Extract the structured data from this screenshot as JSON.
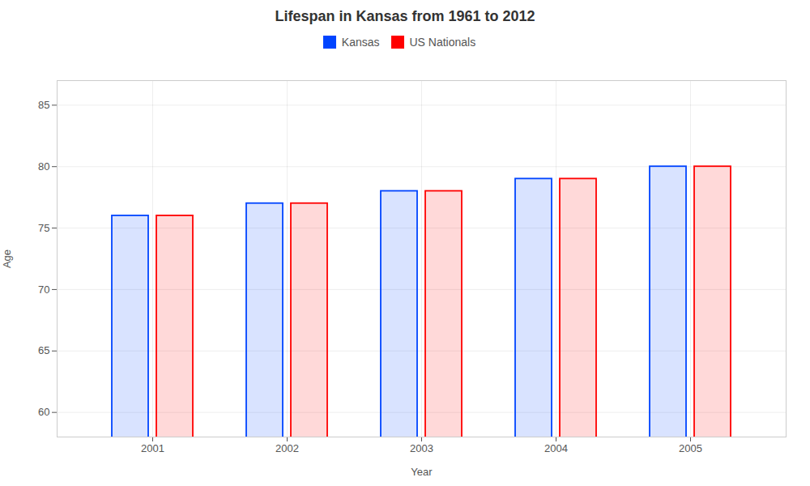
{
  "chart_data": {
    "type": "bar",
    "title": "Lifespan in Kansas from 1961 to 2012",
    "xlabel": "Year",
    "ylabel": "Age",
    "categories": [
      "2001",
      "2002",
      "2003",
      "2004",
      "2005"
    ],
    "series": [
      {
        "name": "Kansas",
        "color": "#0044ff",
        "values": [
          76,
          77,
          78,
          79,
          80
        ]
      },
      {
        "name": "US Nationals",
        "color": "#ff0000",
        "values": [
          76,
          77,
          78,
          79,
          80
        ]
      }
    ],
    "ylim": [
      58,
      87
    ],
    "yticks": [
      60,
      65,
      70,
      75,
      80,
      85
    ],
    "grid": true,
    "legend": "top"
  }
}
